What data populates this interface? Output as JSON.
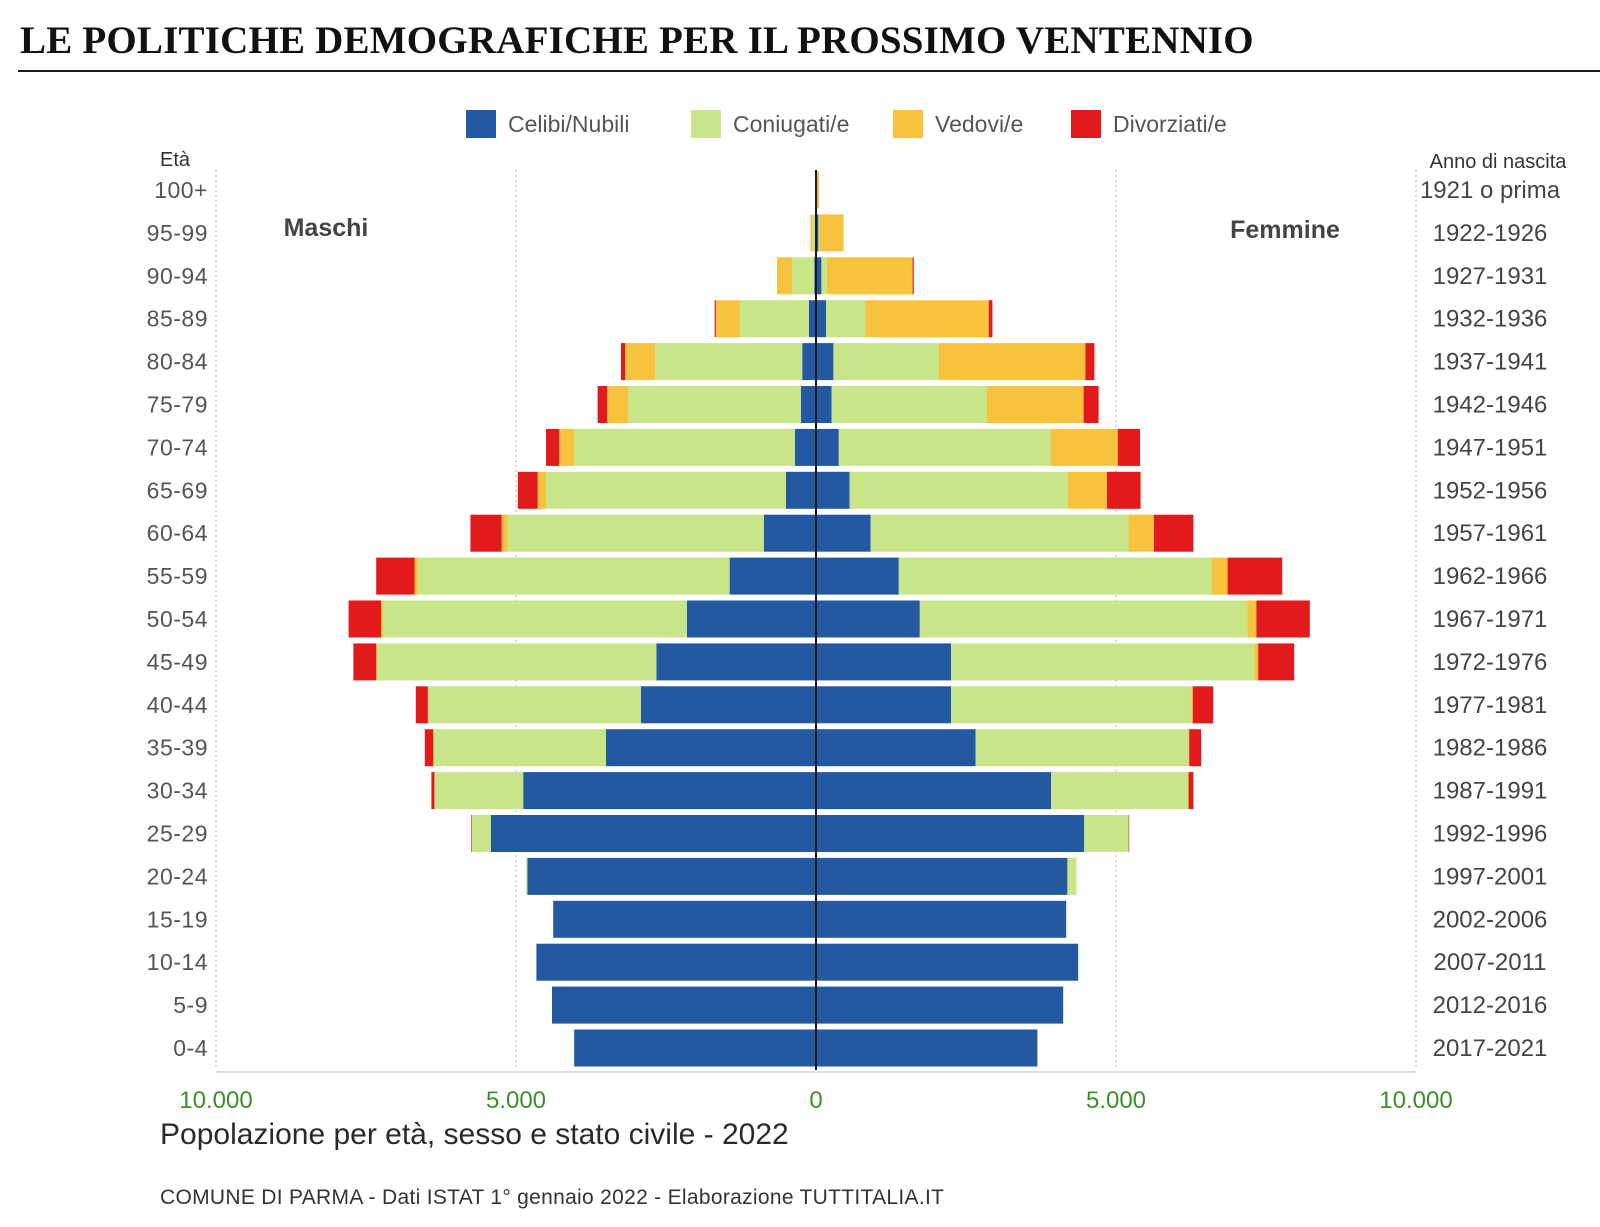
{
  "headline": "LE POLITICHE DEMOGRAFICHE PER IL PROSSIMO VENTENNIO",
  "subtitle": "Popolazione per età, sesso e stato civile - 2022",
  "source": "COMUNE DI PARMA - Dati ISTAT 1° gennaio 2022 - Elaborazione TUTTITALIA.IT",
  "chart_data": {
    "type": "bar",
    "orientation": "horizontal-population-pyramid",
    "left_axis_title": "Età",
    "right_axis_title": "Anno di nascita",
    "left_side_label": "Maschi",
    "right_side_label": "Femmine",
    "x_ticks": [
      {
        "value": -10000,
        "label": "10.000"
      },
      {
        "value": -5000,
        "label": "5.000"
      },
      {
        "value": 0,
        "label": "0"
      },
      {
        "value": 5000,
        "label": "5.000"
      },
      {
        "value": 10000,
        "label": "10.000"
      }
    ],
    "xlim": [
      -10000,
      10000
    ],
    "grid": "vertical dotted",
    "legend_position": "top",
    "series": [
      {
        "name": "Celibi/Nubili",
        "color": "#2458a0"
      },
      {
        "name": "Coniugati/e",
        "color": "#c8e58a"
      },
      {
        "name": "Vedovi/e",
        "color": "#f7c33f"
      },
      {
        "name": "Divorziati/e",
        "color": "#e31a1c"
      }
    ],
    "age_groups": [
      "100+",
      "95-99",
      "90-94",
      "85-89",
      "80-84",
      "75-79",
      "70-74",
      "65-69",
      "60-64",
      "55-59",
      "50-54",
      "45-49",
      "40-44",
      "35-39",
      "30-34",
      "25-29",
      "20-24",
      "15-19",
      "10-14",
      "5-9",
      "0-4"
    ],
    "birth_years": [
      "1921 o prima",
      "1922-1926",
      "1927-1931",
      "1932-1936",
      "1937-1941",
      "1942-1946",
      "1947-1951",
      "1952-1956",
      "1957-1961",
      "1962-1966",
      "1967-1971",
      "1972-1976",
      "1977-1981",
      "1982-1986",
      "1987-1991",
      "1992-1996",
      "1997-2001",
      "2002-2006",
      "2007-2011",
      "2012-2016",
      "2017-2021"
    ],
    "males": {
      "Celibi/Nubili": [
        0,
        20,
        30,
        120,
        230,
        250,
        350,
        500,
        870,
        1440,
        2150,
        2660,
        2920,
        3500,
        4880,
        5420,
        4810,
        4380,
        4660,
        4400,
        4030
      ],
      "Coniugati/e": [
        5,
        40,
        370,
        1150,
        2450,
        2880,
        3680,
        4000,
        4270,
        5200,
        5070,
        4650,
        3540,
        2870,
        1480,
        320,
        20,
        0,
        0,
        0,
        0
      ],
      "Vedovi/e": [
        5,
        30,
        250,
        400,
        500,
        350,
        250,
        140,
        100,
        50,
        30,
        20,
        10,
        10,
        0,
        0,
        0,
        0,
        0,
        0,
        0
      ],
      "Divorziati/e": [
        0,
        0,
        0,
        20,
        70,
        160,
        220,
        330,
        520,
        640,
        540,
        380,
        200,
        140,
        50,
        10,
        0,
        0,
        0,
        0,
        0
      ]
    },
    "females": {
      "Celibi/Nubili": [
        20,
        40,
        90,
        170,
        290,
        260,
        380,
        560,
        910,
        1380,
        1730,
        2250,
        2250,
        2660,
        3920,
        4470,
        4190,
        4170,
        4370,
        4120,
        3690
      ],
      "Coniugati/e": [
        0,
        20,
        90,
        650,
        1760,
        2590,
        3530,
        3640,
        4300,
        5210,
        5460,
        5060,
        4010,
        3550,
        2280,
        740,
        150,
        0,
        0,
        0,
        0
      ],
      "Vedovi/e": [
        30,
        400,
        1430,
        2060,
        2440,
        1610,
        1120,
        650,
        420,
        270,
        150,
        60,
        20,
        10,
        10,
        0,
        0,
        0,
        0,
        0,
        0
      ],
      "Divorziati/e": [
        0,
        0,
        20,
        60,
        150,
        250,
        370,
        560,
        660,
        910,
        890,
        600,
        340,
        200,
        80,
        10,
        0,
        0,
        0,
        0,
        0
      ]
    }
  }
}
